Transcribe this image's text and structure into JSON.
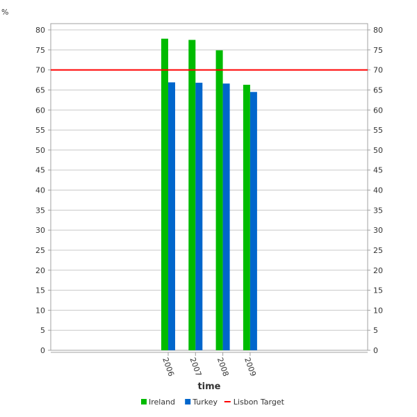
{
  "chart_data": {
    "type": "bar",
    "ylabel": "%",
    "xlabel": "time",
    "categories": [
      "2006",
      "2007",
      "2008",
      "2009"
    ],
    "ylim": [
      0,
      80
    ],
    "ytick_step": 5,
    "grid": true,
    "legend_position": "bottom",
    "series": [
      {
        "name": "Ireland",
        "color": "#00bb00",
        "values": [
          77.8,
          77.5,
          74.9,
          66.3
        ]
      },
      {
        "name": "Turkey",
        "color": "#0066cc",
        "values": [
          66.9,
          66.8,
          66.6,
          64.5
        ]
      }
    ],
    "reference_line": {
      "name": "Lisbon Target",
      "value": 70,
      "color": "#ff0000"
    }
  }
}
